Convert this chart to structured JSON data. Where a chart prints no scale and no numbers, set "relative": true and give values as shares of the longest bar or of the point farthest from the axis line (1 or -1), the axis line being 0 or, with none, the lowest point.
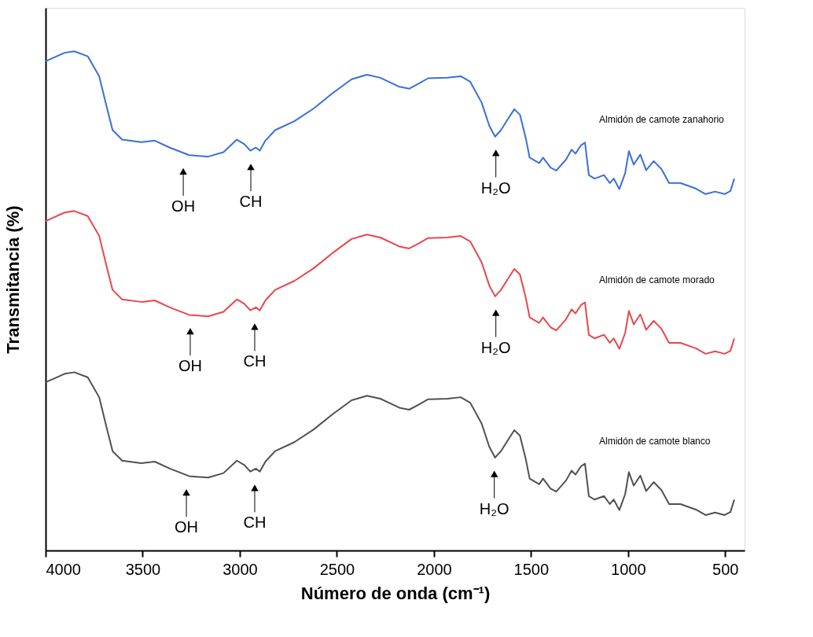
{
  "chart_data": {
    "type": "line",
    "relative": true,
    "xlabel": "Número de onda  (cm⁻¹)",
    "ylabel": "Transmitancia (%)",
    "xlim": [
      4000,
      400
    ],
    "xticks": [
      4000,
      3500,
      3000,
      2500,
      2000,
      1500,
      1000,
      500
    ],
    "x": [
      4000,
      3902,
      3852,
      3783,
      3724,
      3685,
      3655,
      3606,
      3507,
      3438,
      3360,
      3261,
      3163,
      3084,
      3015,
      2976,
      2946,
      2917,
      2897,
      2868,
      2818,
      2719,
      2621,
      2522,
      2424,
      2345,
      2276,
      2178,
      2128,
      2079,
      2030,
      1931,
      1862,
      1813,
      1754,
      1715,
      1685,
      1655,
      1616,
      1586,
      1557,
      1527,
      1507,
      1458,
      1438,
      1399,
      1370,
      1320,
      1291,
      1271,
      1242,
      1222,
      1202,
      1173,
      1124,
      1094,
      1074,
      1045,
      1015,
      996,
      971,
      937,
      907,
      868,
      828,
      789,
      730,
      651,
      601,
      552,
      503,
      473,
      453
    ],
    "series": [
      {
        "name": "Almidón de camote zanahorio",
        "color": "#3a6fd8",
        "values": [
          0.98,
          0.997,
          1.0,
          0.99,
          0.95,
          0.888,
          0.842,
          0.823,
          0.818,
          0.821,
          0.807,
          0.792,
          0.789,
          0.798,
          0.823,
          0.814,
          0.801,
          0.807,
          0.801,
          0.821,
          0.842,
          0.86,
          0.885,
          0.916,
          0.944,
          0.953,
          0.947,
          0.929,
          0.925,
          0.935,
          0.946,
          0.947,
          0.95,
          0.939,
          0.897,
          0.851,
          0.829,
          0.842,
          0.866,
          0.884,
          0.873,
          0.826,
          0.787,
          0.776,
          0.787,
          0.767,
          0.761,
          0.783,
          0.803,
          0.795,
          0.812,
          0.817,
          0.752,
          0.745,
          0.752,
          0.736,
          0.745,
          0.724,
          0.756,
          0.8,
          0.773,
          0.793,
          0.762,
          0.78,
          0.764,
          0.736,
          0.736,
          0.725,
          0.714,
          0.719,
          0.714,
          0.72,
          0.745
        ]
      },
      {
        "name": "Almidón de camote morado",
        "color": "#e8474b",
        "values": [
          0.66,
          0.677,
          0.68,
          0.67,
          0.63,
          0.568,
          0.522,
          0.503,
          0.498,
          0.501,
          0.487,
          0.472,
          0.469,
          0.478,
          0.503,
          0.494,
          0.481,
          0.487,
          0.481,
          0.501,
          0.522,
          0.54,
          0.565,
          0.596,
          0.624,
          0.633,
          0.627,
          0.609,
          0.605,
          0.615,
          0.626,
          0.627,
          0.63,
          0.619,
          0.577,
          0.531,
          0.509,
          0.522,
          0.546,
          0.564,
          0.553,
          0.506,
          0.467,
          0.456,
          0.467,
          0.447,
          0.441,
          0.463,
          0.483,
          0.475,
          0.492,
          0.497,
          0.432,
          0.425,
          0.432,
          0.416,
          0.425,
          0.404,
          0.436,
          0.48,
          0.453,
          0.473,
          0.442,
          0.46,
          0.444,
          0.416,
          0.416,
          0.405,
          0.394,
          0.399,
          0.394,
          0.4,
          0.425
        ]
      },
      {
        "name": "Almidón de camote blanco",
        "color": "#505050",
        "values": [
          0.337,
          0.354,
          0.357,
          0.347,
          0.307,
          0.245,
          0.199,
          0.18,
          0.175,
          0.178,
          0.164,
          0.149,
          0.146,
          0.155,
          0.18,
          0.171,
          0.158,
          0.164,
          0.158,
          0.178,
          0.199,
          0.217,
          0.242,
          0.273,
          0.301,
          0.31,
          0.304,
          0.286,
          0.282,
          0.292,
          0.303,
          0.304,
          0.307,
          0.296,
          0.254,
          0.208,
          0.186,
          0.199,
          0.223,
          0.241,
          0.23,
          0.183,
          0.144,
          0.133,
          0.144,
          0.124,
          0.118,
          0.14,
          0.16,
          0.152,
          0.169,
          0.174,
          0.109,
          0.102,
          0.109,
          0.093,
          0.102,
          0.081,
          0.113,
          0.157,
          0.13,
          0.15,
          0.119,
          0.137,
          0.121,
          0.093,
          0.093,
          0.082,
          0.071,
          0.076,
          0.071,
          0.077,
          0.102
        ]
      }
    ],
    "annotations": [
      {
        "text": "OH",
        "x": 3291,
        "y": 0.792
      },
      {
        "text": "CH",
        "x": 2943,
        "y": 0.801
      },
      {
        "text": "H₂O",
        "x": 1681,
        "y": 0.829
      },
      {
        "text": "OH",
        "x": 3255,
        "y": 0.472
      },
      {
        "text": "CH",
        "x": 2923,
        "y": 0.481
      },
      {
        "text": "H₂O",
        "x": 1681,
        "y": 0.509
      },
      {
        "text": "OH",
        "x": 3275,
        "y": 0.149
      },
      {
        "text": "CH",
        "x": 2923,
        "y": 0.158
      },
      {
        "text": "H₂O",
        "x": 1689,
        "y": 0.186
      }
    ]
  }
}
